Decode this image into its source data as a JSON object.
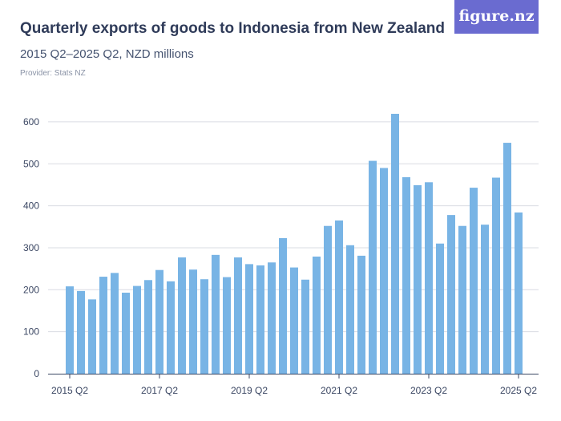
{
  "logo_text": "figure.nz",
  "chart_data": {
    "type": "bar",
    "title": "Quarterly exports of goods to Indonesia from New Zealand",
    "subtitle": "2015 Q2–2025 Q2, NZD millions",
    "provider": "Provider: Stats NZ",
    "categories": [
      "2015 Q2",
      "2015 Q3",
      "2015 Q4",
      "2016 Q1",
      "2016 Q2",
      "2016 Q3",
      "2016 Q4",
      "2017 Q1",
      "2017 Q2",
      "2017 Q3",
      "2017 Q4",
      "2018 Q1",
      "2018 Q2",
      "2018 Q3",
      "2018 Q4",
      "2019 Q1",
      "2019 Q2",
      "2019 Q3",
      "2019 Q4",
      "2020 Q1",
      "2020 Q2",
      "2020 Q3",
      "2020 Q4",
      "2021 Q1",
      "2021 Q2",
      "2021 Q3",
      "2021 Q4",
      "2022 Q1",
      "2022 Q2",
      "2022 Q3",
      "2022 Q4",
      "2023 Q1",
      "2023 Q2",
      "2023 Q3",
      "2023 Q4",
      "2024 Q1",
      "2024 Q2",
      "2024 Q3",
      "2024 Q4",
      "2025 Q1",
      "2025 Q2"
    ],
    "values": [
      208,
      197,
      177,
      231,
      240,
      193,
      209,
      223,
      247,
      220,
      277,
      248,
      225,
      283,
      230,
      277,
      261,
      258,
      265,
      323,
      253,
      224,
      279,
      352,
      365,
      306,
      281,
      507,
      490,
      619,
      468,
      449,
      456,
      310,
      378,
      352,
      443,
      355,
      467,
      550,
      384
    ],
    "x_tick_labels": [
      "2015 Q2",
      "2017 Q2",
      "2019 Q2",
      "2021 Q2",
      "2023 Q2",
      "2025 Q2"
    ],
    "y_ticks": [
      0,
      100,
      200,
      300,
      400,
      500,
      600
    ],
    "ylim": [
      0,
      640
    ],
    "grid": true,
    "bar_color": "#78b4e5",
    "xlabel": "",
    "ylabel": ""
  }
}
